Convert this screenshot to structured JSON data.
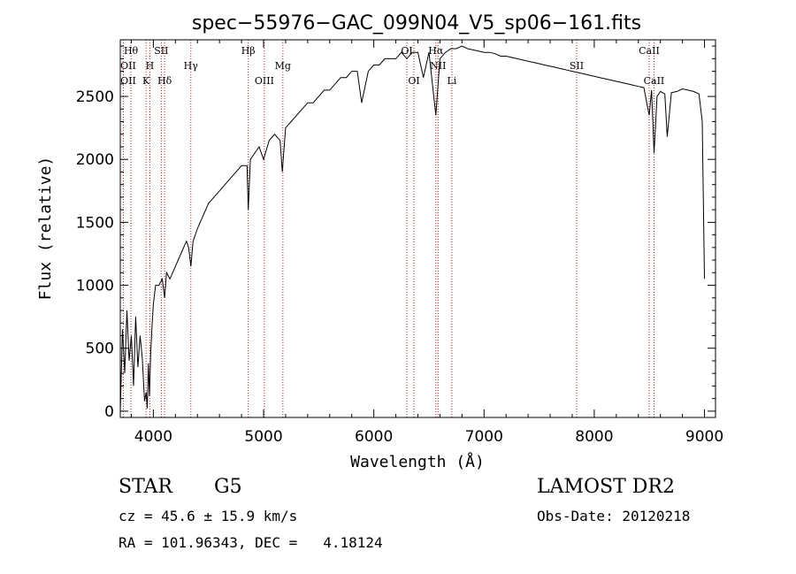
{
  "chart_data": {
    "type": "line",
    "title": "spec−55976−GAC_099N04_V5_sp06−161.fits",
    "xlabel": "Wavelength (Å)",
    "ylabel": "Flux (relative)",
    "xlim": [
      3700,
      9100
    ],
    "ylim": [
      -50,
      2950
    ],
    "xticks": [
      4000,
      5000,
      6000,
      7000,
      8000,
      9000
    ],
    "yticks": [
      0,
      500,
      1000,
      1500,
      2000,
      2500
    ],
    "series": [
      {
        "x": [
          3700,
          3720,
          3740,
          3760,
          3780,
          3800,
          3820,
          3840,
          3860,
          3880,
          3900,
          3920,
          3935,
          3945,
          3955,
          3965,
          3975,
          3990,
          4000,
          4020,
          4050,
          4080,
          4102,
          4120,
          4150,
          4200,
          4250,
          4300,
          4320,
          4340,
          4360,
          4400,
          4450,
          4500,
          4550,
          4600,
          4650,
          4700,
          4750,
          4800,
          4850,
          4861,
          4880,
          4920,
          4960,
          5000,
          5050,
          5100,
          5150,
          5170,
          5200,
          5250,
          5300,
          5350,
          5400,
          5450,
          5500,
          5550,
          5600,
          5650,
          5700,
          5750,
          5800,
          5850,
          5890,
          5950,
          6000,
          6050,
          6100,
          6150,
          6200,
          6250,
          6300,
          6350,
          6400,
          6450,
          6500,
          6563,
          6600,
          6650,
          6700,
          6750,
          6800,
          6850,
          6900,
          6950,
          7000,
          7050,
          7100,
          7150,
          7200,
          7250,
          7300,
          7350,
          7400,
          7450,
          7500,
          7550,
          7600,
          7650,
          7700,
          7750,
          7800,
          7850,
          7900,
          7950,
          8000,
          8050,
          8100,
          8150,
          8200,
          8250,
          8300,
          8350,
          8400,
          8450,
          8498,
          8520,
          8542,
          8570,
          8600,
          8640,
          8662,
          8700,
          8750,
          8800,
          8850,
          8900,
          8950,
          8980,
          9000
        ],
        "y": [
          0,
          650,
          300,
          800,
          400,
          600,
          200,
          750,
          350,
          600,
          420,
          80,
          150,
          20,
          380,
          120,
          450,
          700,
          850,
          1000,
          1000,
          1050,
          900,
          1100,
          1050,
          1150,
          1250,
          1350,
          1300,
          1150,
          1350,
          1450,
          1550,
          1650,
          1700,
          1750,
          1800,
          1850,
          1900,
          1950,
          1950,
          1600,
          2000,
          2050,
          2100,
          2000,
          2150,
          2200,
          2150,
          1900,
          2250,
          2300,
          2350,
          2400,
          2450,
          2450,
          2500,
          2550,
          2550,
          2600,
          2650,
          2650,
          2700,
          2700,
          2450,
          2700,
          2750,
          2750,
          2800,
          2800,
          2800,
          2850,
          2800,
          2850,
          2850,
          2650,
          2850,
          2350,
          2800,
          2850,
          2880,
          2880,
          2900,
          2880,
          2870,
          2860,
          2850,
          2850,
          2840,
          2820,
          2820,
          2810,
          2800,
          2790,
          2780,
          2770,
          2760,
          2750,
          2740,
          2730,
          2720,
          2710,
          2700,
          2690,
          2680,
          2670,
          2660,
          2650,
          2640,
          2630,
          2620,
          2610,
          2600,
          2590,
          2580,
          2570,
          2350,
          2550,
          2050,
          2500,
          2540,
          2520,
          2180,
          2530,
          2540,
          2560,
          2550,
          2540,
          2520,
          2300,
          1050
        ]
      }
    ],
    "lines": [
      {
        "label": "Hθ",
        "x": 3797,
        "row": "top"
      },
      {
        "label": "OII",
        "x": 3727,
        "row": "middle"
      },
      {
        "label": "OII",
        "x": 3727,
        "row": "bottom"
      },
      {
        "label": "H",
        "x": 3968,
        "row": "middle"
      },
      {
        "label": "K",
        "x": 3934,
        "row": "bottom"
      },
      {
        "label": "SII",
        "x": 4072,
        "row": "top"
      },
      {
        "label": "Hδ",
        "x": 4102,
        "row": "bottom"
      },
      {
        "label": "Hγ",
        "x": 4340,
        "row": "middle"
      },
      {
        "label": "Hβ",
        "x": 4861,
        "row": "top"
      },
      {
        "label": "OIII",
        "x": 5007,
        "row": "bottom"
      },
      {
        "label": "Mg",
        "x": 5175,
        "row": "middle"
      },
      {
        "label": "OI",
        "x": 6300,
        "row": "top"
      },
      {
        "label": "OI",
        "x": 6364,
        "row": "bottom"
      },
      {
        "label": "Hα",
        "x": 6563,
        "row": "top"
      },
      {
        "label": "NII",
        "x": 6583,
        "row": "middle"
      },
      {
        "label": "Li",
        "x": 6708,
        "row": "bottom"
      },
      {
        "label": "SII",
        "x": 7840,
        "row": "middle"
      },
      {
        "label": "CaII",
        "x": 8498,
        "row": "top"
      },
      {
        "label": "CaII",
        "x": 8542,
        "row": "bottom"
      }
    ]
  },
  "info": {
    "class_label": "STAR",
    "subclass": "G5",
    "survey": "LAMOST DR2",
    "cz": "cz = 45.6 ± 15.9 km/s",
    "obs_date": "Obs-Date: 20120218",
    "coords": "RA = 101.96343, DEC =   4.18124"
  }
}
